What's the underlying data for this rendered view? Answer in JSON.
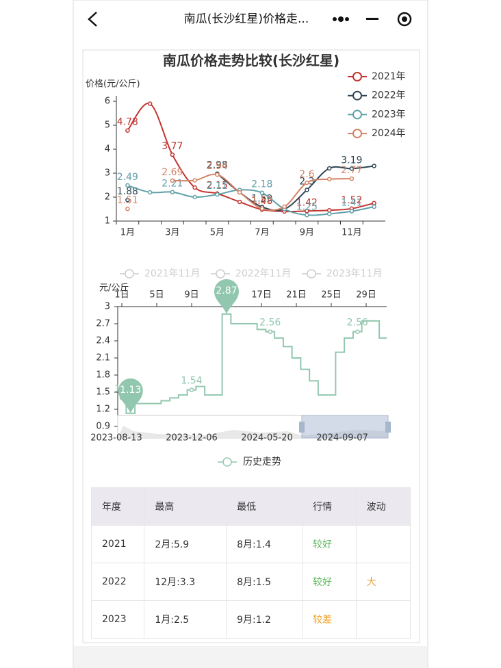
{
  "header": {
    "title": "南瓜(长沙红星)价格走..."
  },
  "chart_data": [
    {
      "type": "line",
      "title": "南瓜价格走势比较(长沙红星)",
      "y_label": "价格(元/公斤)",
      "smooth": true,
      "legend": "top-right",
      "categories": [
        "1月",
        null,
        "3月",
        null,
        "5月",
        null,
        "7月",
        null,
        "9月",
        null,
        "11月",
        null
      ],
      "ylim": [
        1,
        6
      ],
      "yticks": [
        1,
        2,
        3,
        4,
        5,
        6
      ],
      "series": [
        {
          "name": "2021年",
          "color": "#c23531",
          "values": [
            4.78,
            5.9,
            3.77,
            2.4,
            2.15,
            1.8,
            1.48,
            1.4,
            1.42,
            1.45,
            1.52,
            1.75
          ]
        },
        {
          "name": "2022年",
          "color": "#2f4554",
          "values": [
            1.88,
            null,
            null,
            null,
            2.98,
            2.2,
            1.59,
            1.5,
            2.3,
            3.2,
            3.19,
            3.3
          ]
        },
        {
          "name": "2023年",
          "color": "#61a0a8",
          "values": [
            2.49,
            2.2,
            2.21,
            2.0,
            2.11,
            2.3,
            2.18,
            1.5,
            1.25,
            1.3,
            1.41,
            1.6
          ]
        },
        {
          "name": "2024年",
          "color": "#d48265",
          "values": [
            1.51,
            null,
            2.69,
            2.7,
            2.94,
            2.2,
            1.52,
            1.6,
            2.6,
            2.75,
            2.77,
            null
          ]
        }
      ]
    },
    {
      "type": "line",
      "step": true,
      "y_label": "元/公斤",
      "x_axis_position": "top",
      "legend": "bottom",
      "inactive_legend": [
        "2021年11月",
        "2022年11月",
        "2023年11月"
      ],
      "categories": [
        "1日",
        null,
        null,
        null,
        "5日",
        null,
        null,
        null,
        "9日",
        null,
        null,
        null,
        "13日",
        null,
        null,
        null,
        "17日",
        null,
        null,
        null,
        "21日",
        null,
        null,
        null,
        "25日",
        null,
        null,
        null,
        "29日",
        null,
        null
      ],
      "ylim": [
        0.9,
        3
      ],
      "yticks": [
        0.9,
        1.2,
        1.5,
        1.8,
        2.1,
        2.4,
        2.7,
        3
      ],
      "series": [
        {
          "name": "历史走势",
          "color": "#91c7ae",
          "values": [
            1.4,
            1.13,
            1.3,
            1.3,
            1.3,
            1.35,
            1.4,
            1.45,
            1.54,
            1.6,
            1.45,
            1.45,
            2.87,
            2.7,
            2.7,
            2.7,
            2.6,
            2.56,
            2.45,
            2.3,
            2.1,
            1.9,
            1.7,
            1.45,
            1.45,
            2.2,
            2.45,
            2.56,
            2.75,
            2.75,
            2.45
          ]
        }
      ],
      "zoom_labels": [
        "2023-08-13",
        "2023-12-06",
        "2024-05-20",
        "2024-09-07"
      ]
    }
  ],
  "table": {
    "columns": [
      "年度",
      "最高",
      "最低",
      "行情",
      "波动"
    ],
    "rows": [
      [
        "2021",
        "2月:5.9",
        "8月:1.4",
        "较好",
        null
      ],
      [
        "2022",
        "12月:3.3",
        "8月:1.5",
        "较好",
        "大"
      ],
      [
        "2023",
        "1月:2.5",
        "9月:1.2",
        "较差",
        null
      ]
    ],
    "cell_colors": [
      [
        null,
        null,
        null,
        "#5cb85c",
        null
      ],
      [
        null,
        null,
        null,
        "#5cb85c",
        "#e6a23c"
      ],
      [
        null,
        null,
        null,
        "#f0a020",
        null
      ]
    ]
  }
}
